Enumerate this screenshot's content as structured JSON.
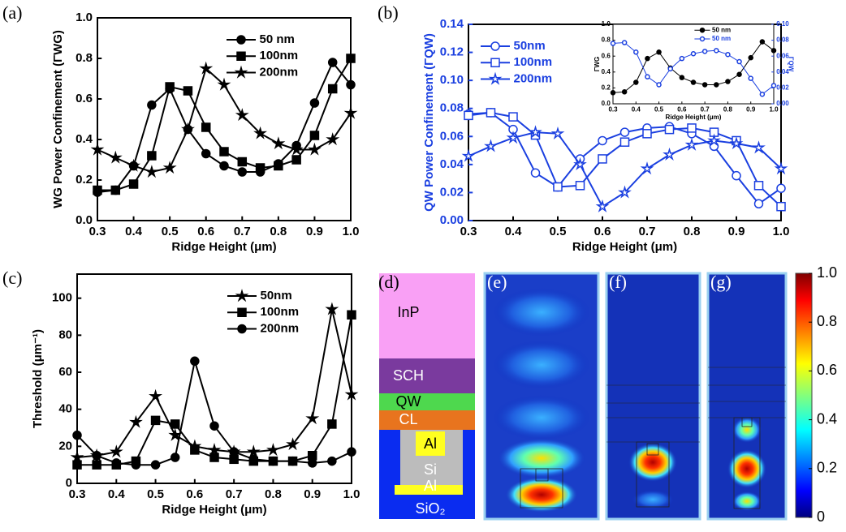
{
  "chart_data": [
    {
      "type": "line",
      "xlabel": "Ridge Height (μm)",
      "ylabel": "WG Power Confinement (ΓWG)",
      "x": [
        0.3,
        0.35,
        0.4,
        0.45,
        0.5,
        0.55,
        0.6,
        0.65,
        0.7,
        0.75,
        0.8,
        0.85,
        0.9,
        0.95,
        1.0
      ],
      "xlim": [
        0.3,
        1.0
      ],
      "xticks": [
        0.3,
        0.4,
        0.5,
        0.6,
        0.7,
        0.8,
        0.9,
        {
          "value": 1.0,
          "label": "1.0"
        }
      ],
      "ylim": [
        0,
        1.0
      ],
      "yticks": [
        {
          "value": 0,
          "label": "0.0"
        },
        0.2,
        0.4,
        0.6,
        0.8,
        {
          "value": 1.0,
          "label": "1.0"
        }
      ],
      "legend": "upper right",
      "series": [
        {
          "name": "50 nm",
          "color": "#000000",
          "marker": "circle",
          "filled": true,
          "values": [
            0.14,
            0.15,
            0.27,
            0.57,
            0.65,
            0.45,
            0.33,
            0.27,
            0.24,
            0.24,
            0.28,
            0.37,
            0.58,
            0.78,
            0.67
          ]
        },
        {
          "name": "100nm",
          "color": "#000000",
          "marker": "square",
          "filled": true,
          "values": [
            0.15,
            0.15,
            0.18,
            0.32,
            0.66,
            0.64,
            0.46,
            0.34,
            0.29,
            0.26,
            0.27,
            0.3,
            0.42,
            0.65,
            0.8
          ]
        },
        {
          "name": "200nm",
          "color": "#000000",
          "marker": "star",
          "filled": true,
          "values": [
            0.35,
            0.31,
            0.27,
            0.24,
            0.26,
            0.45,
            0.75,
            0.67,
            0.52,
            0.43,
            0.38,
            0.35,
            0.35,
            0.4,
            0.53
          ]
        }
      ]
    },
    {
      "type": "line",
      "xlabel": "Ridge Height (μm)",
      "ylabel": "QW Power Confinement (ΓQW)",
      "x": [
        0.3,
        0.35,
        0.4,
        0.45,
        0.5,
        0.55,
        0.6,
        0.65,
        0.7,
        0.75,
        0.8,
        0.85,
        0.9,
        0.95,
        1.0
      ],
      "xlim": [
        0.3,
        1.0
      ],
      "xticks": [
        0.3,
        0.4,
        0.5,
        0.6,
        0.7,
        0.8,
        0.9,
        {
          "value": 1.0,
          "label": "1.0"
        }
      ],
      "ylim": [
        0,
        0.14
      ],
      "yticks": [
        {
          "value": 0,
          "label": "0.00"
        },
        0.02,
        0.04,
        0.06,
        0.08,
        {
          "value": 0.1,
          "label": "0.10"
        },
        0.12,
        0.14
      ],
      "legend": "upper left",
      "series": [
        {
          "name": "50nm",
          "color": "#1a3fe0",
          "marker": "circle",
          "filled": false,
          "values": [
            0.076,
            0.077,
            0.065,
            0.034,
            0.024,
            0.044,
            0.057,
            0.063,
            0.066,
            0.067,
            0.062,
            0.053,
            0.032,
            0.012,
            0.023
          ]
        },
        {
          "name": "100nm",
          "color": "#1a3fe0",
          "marker": "square",
          "filled": false,
          "values": [
            0.075,
            0.077,
            0.074,
            0.061,
            0.024,
            0.025,
            0.044,
            0.056,
            0.062,
            0.065,
            0.066,
            0.063,
            0.057,
            0.025,
            0.01
          ]
        },
        {
          "name": "200nm",
          "color": "#1a3fe0",
          "marker": "star",
          "filled": false,
          "values": [
            0.046,
            0.053,
            0.059,
            0.063,
            0.062,
            0.04,
            0.01,
            0.02,
            0.037,
            0.047,
            0.054,
            0.057,
            0.055,
            0.052,
            0.037
          ]
        }
      ]
    },
    {
      "type": "line",
      "xlabel": "Ridge Height (μm)",
      "ylabel": "ΓWG",
      "y2label": "ΓQW",
      "x": [
        0.3,
        0.35,
        0.4,
        0.45,
        0.5,
        0.55,
        0.6,
        0.65,
        0.7,
        0.75,
        0.8,
        0.85,
        0.9,
        0.95,
        1.0
      ],
      "xlim": [
        0.3,
        1.0
      ],
      "xticks": [
        0.3,
        0.4,
        0.5,
        0.6,
        0.7,
        0.8,
        0.9,
        {
          "value": 1.0,
          "label": "1.0"
        }
      ],
      "ylim": [
        0,
        1.0
      ],
      "yticks": [
        {
          "value": 0,
          "label": "0.0"
        },
        0.2,
        0.4,
        0.6,
        0.8,
        {
          "value": 1.0,
          "label": "1.0"
        }
      ],
      "y2lim": [
        0,
        0.1
      ],
      "y2ticks": [
        {
          "value": 0,
          "label": "0.00"
        },
        0.02,
        0.04,
        0.06,
        0.08,
        {
          "value": 0.1,
          "label": "0.10"
        }
      ],
      "legend": "upper right",
      "series": [
        {
          "name": "50 nm",
          "color": "#000000",
          "marker": "circle",
          "filled": true,
          "values": [
            0.14,
            0.15,
            0.27,
            0.57,
            0.65,
            0.45,
            0.33,
            0.27,
            0.24,
            0.24,
            0.28,
            0.37,
            0.58,
            0.78,
            0.67
          ]
        },
        {
          "name": "50 nm",
          "color": "#1a3fe0",
          "marker": "circle",
          "filled": false,
          "axis": "y2",
          "values": [
            0.076,
            0.077,
            0.065,
            0.034,
            0.024,
            0.044,
            0.057,
            0.063,
            0.066,
            0.067,
            0.062,
            0.053,
            0.032,
            0.012,
            0.023
          ]
        }
      ]
    },
    {
      "type": "line",
      "xlabel": "Ridge Height (μm)",
      "ylabel": "Threshold (μm⁻¹)",
      "x": [
        0.3,
        0.35,
        0.4,
        0.45,
        0.5,
        0.55,
        0.6,
        0.65,
        0.7,
        0.75,
        0.8,
        0.85,
        0.9,
        0.95,
        1.0
      ],
      "xlim": [
        0.3,
        1.0
      ],
      "xticks": [
        0.3,
        0.4,
        0.5,
        0.6,
        0.7,
        0.8,
        0.9,
        {
          "value": 1.0,
          "label": "1.0"
        }
      ],
      "ylim": [
        0,
        113
      ],
      "yticks": [
        0,
        20,
        40,
        60,
        80,
        100
      ],
      "legend": "upper right",
      "series": [
        {
          "name": "50nm",
          "color": "#000000",
          "marker": "star",
          "filled": true,
          "values": [
            14,
            15,
            17,
            33,
            47,
            26,
            20,
            18,
            17,
            17,
            18,
            21,
            35,
            94,
            48
          ]
        },
        {
          "name": "100nm",
          "color": "#000000",
          "marker": "square",
          "filled": true,
          "values": [
            10,
            10,
            10,
            12,
            34,
            32,
            18,
            14,
            13,
            12,
            12,
            12,
            15,
            32,
            91
          ]
        },
        {
          "name": "200nm",
          "color": "#000000",
          "marker": "circle",
          "filled": true,
          "values": [
            26,
            15,
            11,
            10,
            10,
            14,
            66,
            31,
            17,
            13,
            12,
            12,
            11,
            12,
            17
          ]
        }
      ]
    },
    {
      "type": "colorbar",
      "ylim": [
        0,
        1.0
      ],
      "yticks": [
        0,
        0.2,
        0.4,
        0.6,
        0.8,
        {
          "value": 1.0,
          "label": "1.0"
        }
      ]
    }
  ],
  "diagram": {
    "panel_labels": [
      "(a)",
      "(b)",
      "(c)",
      "(d)",
      "(e)",
      "(f)",
      "(g)"
    ],
    "layers": [
      "InP",
      "SCH",
      "QW",
      "CL",
      "Al",
      "Si",
      "Al",
      "SiO₂"
    ]
  }
}
